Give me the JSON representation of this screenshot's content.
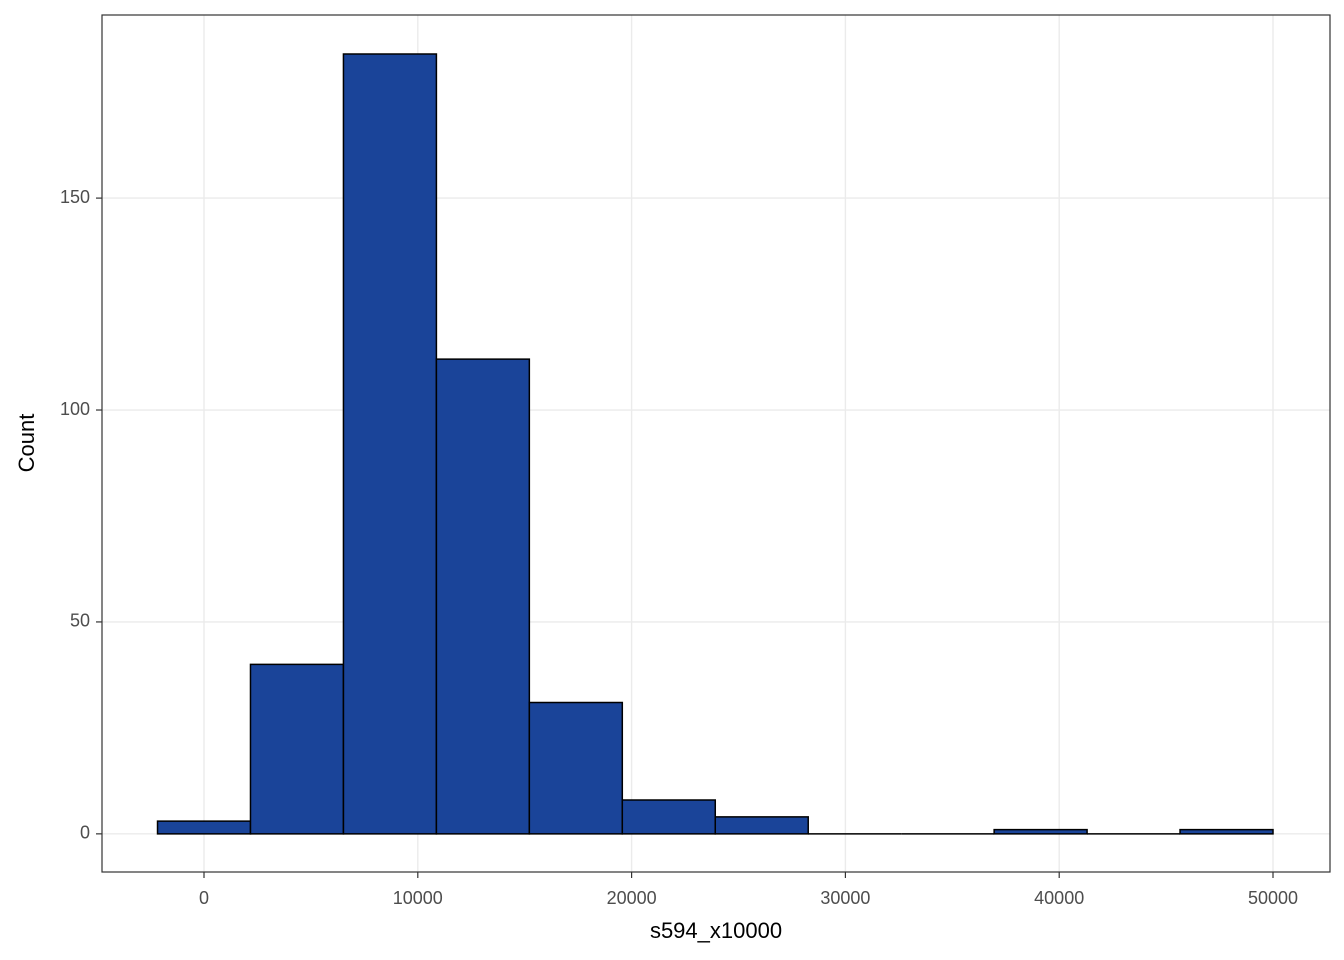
{
  "chart_data": {
    "type": "histogram",
    "x_label": "s594_x10000",
    "y_label": "Count",
    "bins": [
      -2174,
      2174,
      6522,
      10870,
      15217,
      19565,
      23913,
      28261,
      32609,
      36957,
      41304,
      45652,
      50000
    ],
    "values": [
      3,
      40,
      184,
      112,
      31,
      8,
      4,
      0,
      0,
      1,
      0,
      1
    ],
    "color": "#1a4499",
    "xlim": [
      -4771,
      52666
    ],
    "ylim": [
      -9,
      193.2
    ],
    "xticks": [
      0,
      10000,
      20000,
      30000,
      40000,
      50000
    ],
    "yticks": [
      0,
      50,
      100,
      150
    ],
    "grid": true
  }
}
